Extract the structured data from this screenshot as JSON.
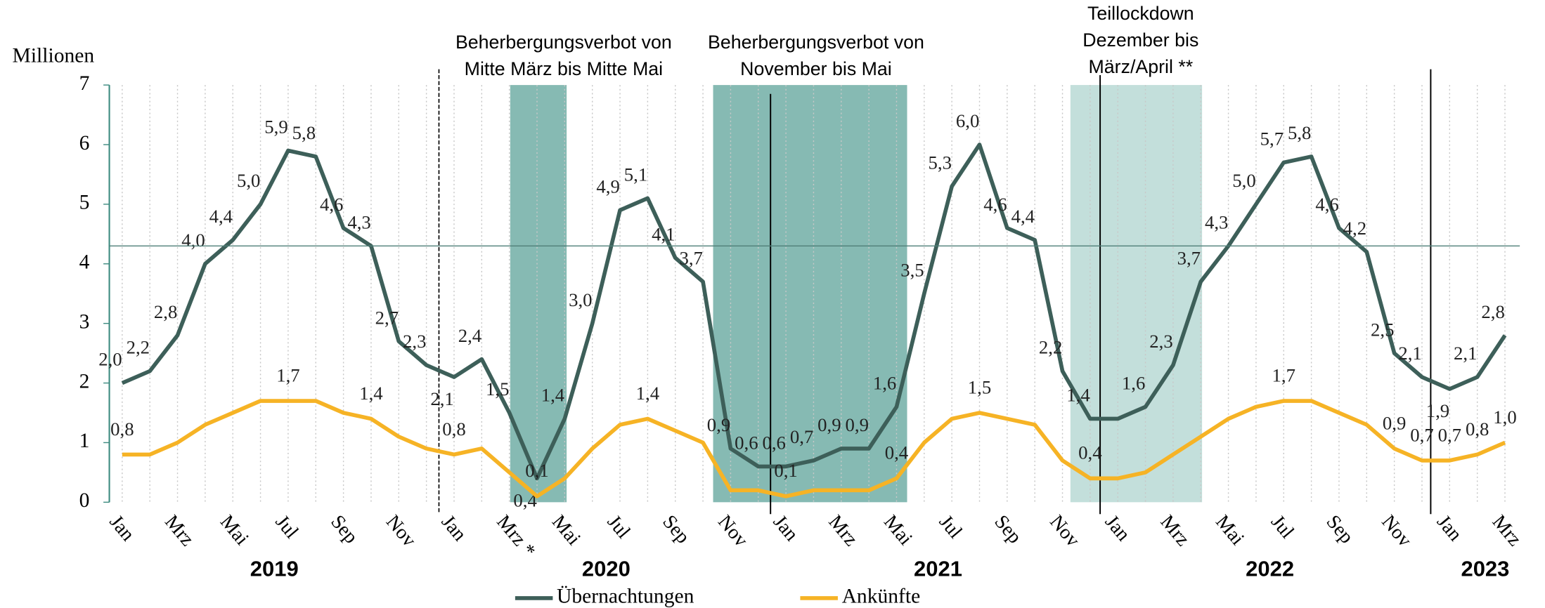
{
  "chart_data": {
    "type": "line",
    "y_axis_label": "Millionen",
    "categories": [
      "Jan",
      null,
      "Mrz",
      null,
      "Mai",
      null,
      "Jul",
      null,
      "Sep",
      null,
      "Nov",
      null,
      "Jan",
      null,
      "Mrz *",
      null,
      "Mai",
      null,
      "Jul",
      null,
      "Sep",
      null,
      "Nov",
      null,
      "Jan",
      null,
      "Mrz",
      null,
      "Mai",
      null,
      "Jul",
      null,
      "Sep",
      null,
      "Nov",
      null,
      "Jan",
      null,
      "Mrz",
      null,
      "Mai",
      null,
      "Jul",
      null,
      "Sep",
      null,
      "Nov",
      null,
      "Jan",
      null,
      "Mrz"
    ],
    "years": [
      {
        "label": "2019",
        "first": 0,
        "last": 11
      },
      {
        "label": "2020",
        "first": 12,
        "last": 23
      },
      {
        "label": "2021",
        "first": 24,
        "last": 35
      },
      {
        "label": "2022",
        "first": 36,
        "last": 47
      },
      {
        "label": "2023",
        "first": 48,
        "last": 50
      }
    ],
    "series": [
      {
        "name": "Übernachtungen",
        "color": "#3d5f59",
        "values": [
          2.0,
          2.2,
          2.8,
          4.0,
          4.4,
          5.0,
          5.9,
          5.8,
          4.6,
          4.3,
          2.7,
          2.3,
          2.1,
          2.4,
          1.5,
          0.4,
          1.4,
          3.0,
          4.9,
          5.1,
          4.1,
          3.7,
          0.9,
          0.6,
          0.6,
          0.7,
          0.9,
          0.9,
          1.6,
          3.5,
          5.3,
          6.0,
          4.6,
          4.4,
          2.2,
          1.4,
          1.4,
          1.6,
          2.3,
          3.7,
          4.3,
          5.0,
          5.7,
          5.8,
          4.6,
          4.2,
          2.5,
          2.1,
          1.9,
          2.1,
          2.8
        ],
        "value_labels": [
          "2,0",
          "2,2",
          "2,8",
          "4,0",
          "4,4",
          "5,0",
          "5,9",
          "5,8",
          "4,6",
          "4,3",
          "2,7",
          "2,3",
          "2,1",
          "2,4",
          "1,5",
          "0,4",
          "1,4",
          "3,0",
          "4,9",
          "5,1",
          "4,1",
          "3,7",
          "0,9",
          "0,6",
          "0,6",
          "0,7",
          "0,9",
          "0,9",
          "1,6",
          "3,5",
          "5,3",
          "6,0",
          "4,6",
          "4,4",
          "2,2",
          "1,4",
          null,
          "1,6",
          "2,3",
          "3,7",
          "4,3",
          "5,0",
          "5,7",
          "5,8",
          "4,6",
          "4,2",
          "2,5",
          "2,1",
          "1,9",
          "2,1",
          "2,8"
        ]
      },
      {
        "name": "Ankünfte",
        "color": "#f6b325",
        "values": [
          0.8,
          0.8,
          1.0,
          1.3,
          1.5,
          1.7,
          1.7,
          1.7,
          1.5,
          1.4,
          1.1,
          0.9,
          0.8,
          0.9,
          0.5,
          0.1,
          0.4,
          0.9,
          1.3,
          1.4,
          1.2,
          1.0,
          0.2,
          0.2,
          0.1,
          0.2,
          0.2,
          0.2,
          0.4,
          1.0,
          1.4,
          1.5,
          1.4,
          1.3,
          0.7,
          0.4,
          0.4,
          0.5,
          0.8,
          1.1,
          1.4,
          1.6,
          1.7,
          1.7,
          1.5,
          1.3,
          0.9,
          0.7,
          0.7,
          0.8,
          1.0
        ],
        "value_labels": [
          "0,8",
          null,
          null,
          null,
          null,
          null,
          "1,7",
          null,
          null,
          "1,4",
          null,
          null,
          "0,8",
          null,
          null,
          "0,1",
          null,
          null,
          null,
          "1,4",
          null,
          null,
          null,
          null,
          "0,1",
          null,
          null,
          null,
          "0,4",
          null,
          null,
          "1,5",
          null,
          null,
          null,
          "0,4",
          null,
          null,
          null,
          null,
          null,
          null,
          "1,7",
          null,
          null,
          null,
          "0,9",
          "0,7",
          "0,7",
          "0,8",
          "1,0"
        ]
      }
    ],
    "reference_line": 4.3,
    "annotations": [
      [
        "Beherbergungsverbot von",
        "Mitte März bis Mitte Mai"
      ],
      [
        "Beherbergungsverbot von",
        "November bis Mai"
      ],
      [
        "Teillockdown",
        "Dezember bis",
        "März/April **"
      ]
    ],
    "ylim": [
      0,
      7
    ],
    "yticks": [
      0,
      1,
      2,
      3,
      4,
      5,
      6,
      7
    ],
    "grid": true,
    "legend": "bottom"
  }
}
